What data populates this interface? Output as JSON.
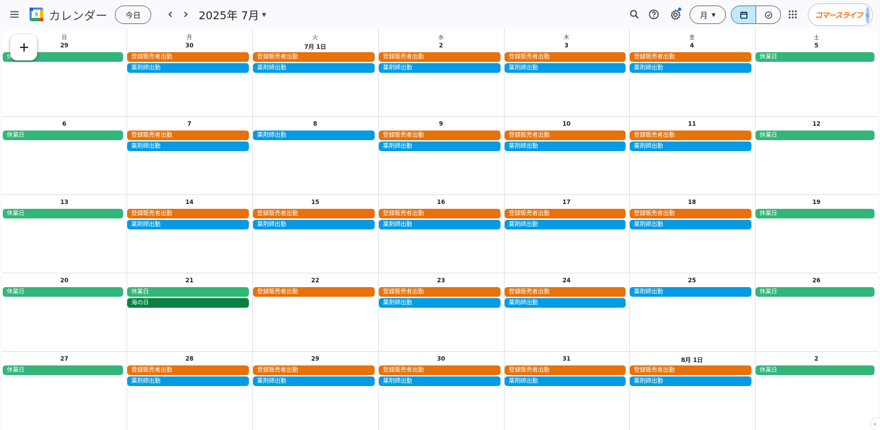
{
  "header": {
    "app_title": "カレンダー",
    "today_label": "今日",
    "month_title": "2025年 7月",
    "view_label": "月",
    "brand_text": "コマースライフ",
    "icons": [
      "menu-icon",
      "calendar-logo-icon",
      "chevron-left-icon",
      "chevron-right-icon",
      "search-icon",
      "help-icon",
      "settings-icon",
      "calendar-icon",
      "task-check-icon",
      "apps-grid-icon",
      "avatar-icon"
    ]
  },
  "weekdays": [
    "日",
    "月",
    "火",
    "水",
    "木",
    "金",
    "土"
  ],
  "colors": {
    "holiday_green": "#33b679",
    "public_holiday_dark_green": "#0b8043",
    "sales_orange": "#e8710a",
    "pharmacist_blue": "#039be5",
    "accent": "#1a73e8"
  },
  "weeks": [
    [
      {
        "label": "29",
        "events": [
          {
            "title": "休業日",
            "color": "green"
          }
        ]
      },
      {
        "label": "30",
        "events": [
          {
            "title": "登録販売者出勤",
            "color": "orange"
          },
          {
            "title": "薬剤師出勤",
            "color": "blue"
          }
        ]
      },
      {
        "label": "7月 1日",
        "events": [
          {
            "title": "登録販売者出勤",
            "color": "orange"
          },
          {
            "title": "薬剤師出勤",
            "color": "blue"
          }
        ]
      },
      {
        "label": "2",
        "events": [
          {
            "title": "登録販売者出勤",
            "color": "orange"
          },
          {
            "title": "薬剤師出勤",
            "color": "blue"
          }
        ]
      },
      {
        "label": "3",
        "events": [
          {
            "title": "登録販売者出勤",
            "color": "orange"
          },
          {
            "title": "薬剤師出勤",
            "color": "blue"
          }
        ]
      },
      {
        "label": "4",
        "events": [
          {
            "title": "登録販売者出勤",
            "color": "orange"
          },
          {
            "title": "薬剤師出勤",
            "color": "blue"
          }
        ]
      },
      {
        "label": "5",
        "events": [
          {
            "title": "休業日",
            "color": "green"
          }
        ]
      }
    ],
    [
      {
        "label": "6",
        "events": [
          {
            "title": "休業日",
            "color": "green"
          }
        ]
      },
      {
        "label": "7",
        "events": [
          {
            "title": "登録販売者出勤",
            "color": "orange"
          },
          {
            "title": "薬剤師出勤",
            "color": "blue"
          }
        ]
      },
      {
        "label": "8",
        "events": [
          {
            "title": "薬剤師出勤",
            "color": "blue"
          }
        ]
      },
      {
        "label": "9",
        "events": [
          {
            "title": "登録販売者出勤",
            "color": "orange"
          },
          {
            "title": "薬剤師出勤",
            "color": "blue"
          }
        ]
      },
      {
        "label": "10",
        "events": [
          {
            "title": "登録販売者出勤",
            "color": "orange"
          },
          {
            "title": "薬剤師出勤",
            "color": "blue"
          }
        ]
      },
      {
        "label": "11",
        "events": [
          {
            "title": "登録販売者出勤",
            "color": "orange"
          },
          {
            "title": "薬剤師出勤",
            "color": "blue"
          }
        ]
      },
      {
        "label": "12",
        "events": [
          {
            "title": "休業日",
            "color": "green"
          }
        ]
      }
    ],
    [
      {
        "label": "13",
        "events": [
          {
            "title": "休業日",
            "color": "green"
          }
        ]
      },
      {
        "label": "14",
        "events": [
          {
            "title": "登録販売者出勤",
            "color": "orange"
          },
          {
            "title": "薬剤師出勤",
            "color": "blue"
          }
        ]
      },
      {
        "label": "15",
        "events": [
          {
            "title": "登録販売者出勤",
            "color": "orange"
          },
          {
            "title": "薬剤師出勤",
            "color": "blue"
          }
        ]
      },
      {
        "label": "16",
        "events": [
          {
            "title": "登録販売者出勤",
            "color": "orange"
          },
          {
            "title": "薬剤師出勤",
            "color": "blue"
          }
        ]
      },
      {
        "label": "17",
        "events": [
          {
            "title": "登録販売者出勤",
            "color": "orange"
          },
          {
            "title": "薬剤師出勤",
            "color": "blue"
          }
        ]
      },
      {
        "label": "18",
        "events": [
          {
            "title": "登録販売者出勤",
            "color": "orange"
          },
          {
            "title": "薬剤師出勤",
            "color": "blue"
          }
        ]
      },
      {
        "label": "19",
        "events": [
          {
            "title": "休業日",
            "color": "green"
          }
        ]
      }
    ],
    [
      {
        "label": "20",
        "events": [
          {
            "title": "休業日",
            "color": "green"
          }
        ]
      },
      {
        "label": "21",
        "events": [
          {
            "title": "休業日",
            "color": "green"
          },
          {
            "title": "海の日",
            "color": "darkgreen"
          }
        ]
      },
      {
        "label": "22",
        "events": [
          {
            "title": "登録販売者出勤",
            "color": "orange"
          }
        ]
      },
      {
        "label": "23",
        "events": [
          {
            "title": "登録販売者出勤",
            "color": "orange"
          },
          {
            "title": "薬剤師出勤",
            "color": "blue"
          }
        ]
      },
      {
        "label": "24",
        "events": [
          {
            "title": "登録販売者出勤",
            "color": "orange"
          },
          {
            "title": "薬剤師出勤",
            "color": "blue"
          }
        ]
      },
      {
        "label": "25",
        "events": [
          {
            "title": "薬剤師出勤",
            "color": "blue"
          }
        ]
      },
      {
        "label": "26",
        "events": [
          {
            "title": "休業日",
            "color": "green"
          }
        ]
      }
    ],
    [
      {
        "label": "27",
        "events": [
          {
            "title": "休業日",
            "color": "green"
          }
        ]
      },
      {
        "label": "28",
        "events": [
          {
            "title": "登録販売者出勤",
            "color": "orange"
          },
          {
            "title": "薬剤師出勤",
            "color": "blue"
          }
        ]
      },
      {
        "label": "29",
        "events": [
          {
            "title": "登録販売者出勤",
            "color": "orange"
          },
          {
            "title": "薬剤師出勤",
            "color": "blue"
          }
        ]
      },
      {
        "label": "30",
        "events": [
          {
            "title": "登録販売者出勤",
            "color": "orange"
          },
          {
            "title": "薬剤師出勤",
            "color": "blue"
          }
        ]
      },
      {
        "label": "31",
        "events": [
          {
            "title": "登録販売者出勤",
            "color": "orange"
          },
          {
            "title": "薬剤師出勤",
            "color": "blue"
          }
        ]
      },
      {
        "label": "8月 1日",
        "events": [
          {
            "title": "登録販売者出勤",
            "color": "orange"
          },
          {
            "title": "薬剤師出勤",
            "color": "blue"
          }
        ]
      },
      {
        "label": "2",
        "events": [
          {
            "title": "休業日",
            "color": "green"
          }
        ]
      }
    ]
  ]
}
